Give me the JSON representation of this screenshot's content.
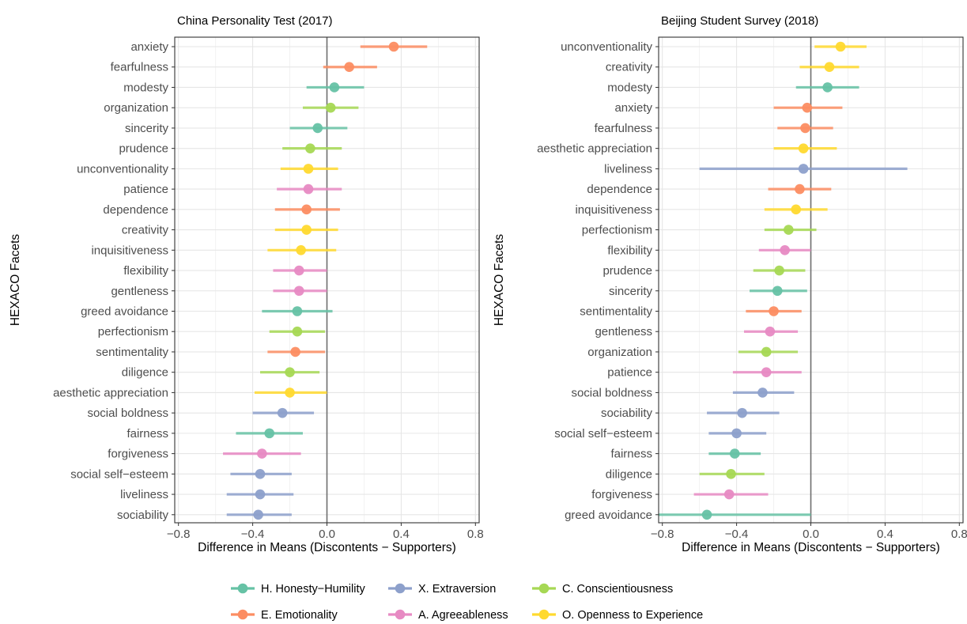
{
  "legend": {
    "items": [
      {
        "key": "H",
        "label": "H. Honesty−Humility",
        "color": "#66C2A5"
      },
      {
        "key": "X",
        "label": "X. Extraversion",
        "color": "#8DA0CB"
      },
      {
        "key": "C",
        "label": "C. Conscientiousness",
        "color": "#A6D854"
      },
      {
        "key": "E",
        "label": "E. Emotionality",
        "color": "#FC8D62"
      },
      {
        "key": "A",
        "label": "A. Agreeableness",
        "color": "#E78AC3"
      },
      {
        "key": "O",
        "label": "O. Openness to Experience",
        "color": "#FFD92F"
      }
    ]
  },
  "chart_data": [
    {
      "type": "scatter",
      "title": "China Personality Test (2017)",
      "xlabel": "Difference in Means (Discontents − Supporters)",
      "ylabel": "HEXACO Facets",
      "xlim": [
        -0.82,
        0.82
      ],
      "xticks": [
        -0.8,
        -0.4,
        0.0,
        0.4,
        0.8
      ],
      "xtick_labels": [
        "−0.8",
        "−0.4",
        "0.0",
        "0.4",
        "0.8"
      ],
      "reference_line_x": 0,
      "grid": true,
      "points": [
        {
          "facet": "anxiety",
          "factor": "E",
          "estimate": 0.36,
          "lower": 0.18,
          "upper": 0.54
        },
        {
          "facet": "fearfulness",
          "factor": "E",
          "estimate": 0.12,
          "lower": -0.02,
          "upper": 0.27
        },
        {
          "facet": "modesty",
          "factor": "H",
          "estimate": 0.04,
          "lower": -0.11,
          "upper": 0.2
        },
        {
          "facet": "organization",
          "factor": "C",
          "estimate": 0.02,
          "lower": -0.13,
          "upper": 0.17
        },
        {
          "facet": "sincerity",
          "factor": "H",
          "estimate": -0.05,
          "lower": -0.2,
          "upper": 0.11
        },
        {
          "facet": "prudence",
          "factor": "C",
          "estimate": -0.09,
          "lower": -0.24,
          "upper": 0.08
        },
        {
          "facet": "unconventionality",
          "factor": "O",
          "estimate": -0.1,
          "lower": -0.25,
          "upper": 0.06
        },
        {
          "facet": "patience",
          "factor": "A",
          "estimate": -0.1,
          "lower": -0.27,
          "upper": 0.08
        },
        {
          "facet": "dependence",
          "factor": "E",
          "estimate": -0.11,
          "lower": -0.28,
          "upper": 0.07
        },
        {
          "facet": "creativity",
          "factor": "O",
          "estimate": -0.11,
          "lower": -0.28,
          "upper": 0.06
        },
        {
          "facet": "inquisitiveness",
          "factor": "O",
          "estimate": -0.14,
          "lower": -0.32,
          "upper": 0.05
        },
        {
          "facet": "flexibility",
          "factor": "A",
          "estimate": -0.15,
          "lower": -0.29,
          "upper": 0.0
        },
        {
          "facet": "gentleness",
          "factor": "A",
          "estimate": -0.15,
          "lower": -0.29,
          "upper": 0.0
        },
        {
          "facet": "greed avoidance",
          "factor": "H",
          "estimate": -0.16,
          "lower": -0.35,
          "upper": 0.03
        },
        {
          "facet": "perfectionism",
          "factor": "C",
          "estimate": -0.16,
          "lower": -0.31,
          "upper": -0.01
        },
        {
          "facet": "sentimentality",
          "factor": "E",
          "estimate": -0.17,
          "lower": -0.32,
          "upper": -0.01
        },
        {
          "facet": "diligence",
          "factor": "C",
          "estimate": -0.2,
          "lower": -0.36,
          "upper": -0.04
        },
        {
          "facet": "aesthetic appreciation",
          "factor": "O",
          "estimate": -0.2,
          "lower": -0.39,
          "upper": 0.0
        },
        {
          "facet": "social boldness",
          "factor": "X",
          "estimate": -0.24,
          "lower": -0.4,
          "upper": -0.07
        },
        {
          "facet": "fairness",
          "factor": "H",
          "estimate": -0.31,
          "lower": -0.49,
          "upper": -0.13
        },
        {
          "facet": "forgiveness",
          "factor": "A",
          "estimate": -0.35,
          "lower": -0.56,
          "upper": -0.14
        },
        {
          "facet": "social self−esteem",
          "factor": "X",
          "estimate": -0.36,
          "lower": -0.52,
          "upper": -0.19
        },
        {
          "facet": "liveliness",
          "factor": "X",
          "estimate": -0.36,
          "lower": -0.54,
          "upper": -0.18
        },
        {
          "facet": "sociability",
          "factor": "X",
          "estimate": -0.37,
          "lower": -0.54,
          "upper": -0.19
        }
      ]
    },
    {
      "type": "scatter",
      "title": "Beijing Student Survey (2018)",
      "xlabel": "Difference in Means (Discontents − Supporters)",
      "ylabel": "HEXACO Facets",
      "xlim": [
        -0.82,
        0.82
      ],
      "xticks": [
        -0.8,
        -0.4,
        0.0,
        0.4,
        0.8
      ],
      "xtick_labels": [
        "−0.8",
        "−0.4",
        "0.0",
        "0.4",
        "0.8"
      ],
      "reference_line_x": 0,
      "grid": true,
      "points": [
        {
          "facet": "unconventionality",
          "factor": "O",
          "estimate": 0.16,
          "lower": 0.02,
          "upper": 0.3
        },
        {
          "facet": "creativity",
          "factor": "O",
          "estimate": 0.1,
          "lower": -0.06,
          "upper": 0.26
        },
        {
          "facet": "modesty",
          "factor": "H",
          "estimate": 0.09,
          "lower": -0.08,
          "upper": 0.26
        },
        {
          "facet": "anxiety",
          "factor": "E",
          "estimate": -0.02,
          "lower": -0.2,
          "upper": 0.17
        },
        {
          "facet": "fearfulness",
          "factor": "E",
          "estimate": -0.03,
          "lower": -0.18,
          "upper": 0.12
        },
        {
          "facet": "aesthetic appreciation",
          "factor": "O",
          "estimate": -0.04,
          "lower": -0.2,
          "upper": 0.14
        },
        {
          "facet": "liveliness",
          "factor": "X",
          "estimate": -0.04,
          "lower": -0.6,
          "upper": 0.52
        },
        {
          "facet": "dependence",
          "factor": "E",
          "estimate": -0.06,
          "lower": -0.23,
          "upper": 0.11
        },
        {
          "facet": "inquisitiveness",
          "factor": "O",
          "estimate": -0.08,
          "lower": -0.25,
          "upper": 0.09
        },
        {
          "facet": "perfectionism",
          "factor": "C",
          "estimate": -0.12,
          "lower": -0.25,
          "upper": 0.03
        },
        {
          "facet": "flexibility",
          "factor": "A",
          "estimate": -0.14,
          "lower": -0.28,
          "upper": 0.0
        },
        {
          "facet": "prudence",
          "factor": "C",
          "estimate": -0.17,
          "lower": -0.31,
          "upper": -0.03
        },
        {
          "facet": "sincerity",
          "factor": "H",
          "estimate": -0.18,
          "lower": -0.33,
          "upper": -0.02
        },
        {
          "facet": "sentimentality",
          "factor": "E",
          "estimate": -0.2,
          "lower": -0.35,
          "upper": -0.05
        },
        {
          "facet": "gentleness",
          "factor": "A",
          "estimate": -0.22,
          "lower": -0.36,
          "upper": -0.07
        },
        {
          "facet": "organization",
          "factor": "C",
          "estimate": -0.24,
          "lower": -0.39,
          "upper": -0.07
        },
        {
          "facet": "patience",
          "factor": "A",
          "estimate": -0.24,
          "lower": -0.42,
          "upper": -0.05
        },
        {
          "facet": "social boldness",
          "factor": "X",
          "estimate": -0.26,
          "lower": -0.42,
          "upper": -0.09
        },
        {
          "facet": "sociability",
          "factor": "X",
          "estimate": -0.37,
          "lower": -0.56,
          "upper": -0.17
        },
        {
          "facet": "social self−esteem",
          "factor": "X",
          "estimate": -0.4,
          "lower": -0.55,
          "upper": -0.24
        },
        {
          "facet": "fairness",
          "factor": "H",
          "estimate": -0.41,
          "lower": -0.55,
          "upper": -0.27
        },
        {
          "facet": "diligence",
          "factor": "C",
          "estimate": -0.43,
          "lower": -0.6,
          "upper": -0.25
        },
        {
          "facet": "forgiveness",
          "factor": "A",
          "estimate": -0.44,
          "lower": -0.63,
          "upper": -0.23
        },
        {
          "facet": "greed avoidance",
          "factor": "H",
          "estimate": -0.56,
          "lower": -0.82,
          "upper": 0.0
        }
      ]
    }
  ]
}
